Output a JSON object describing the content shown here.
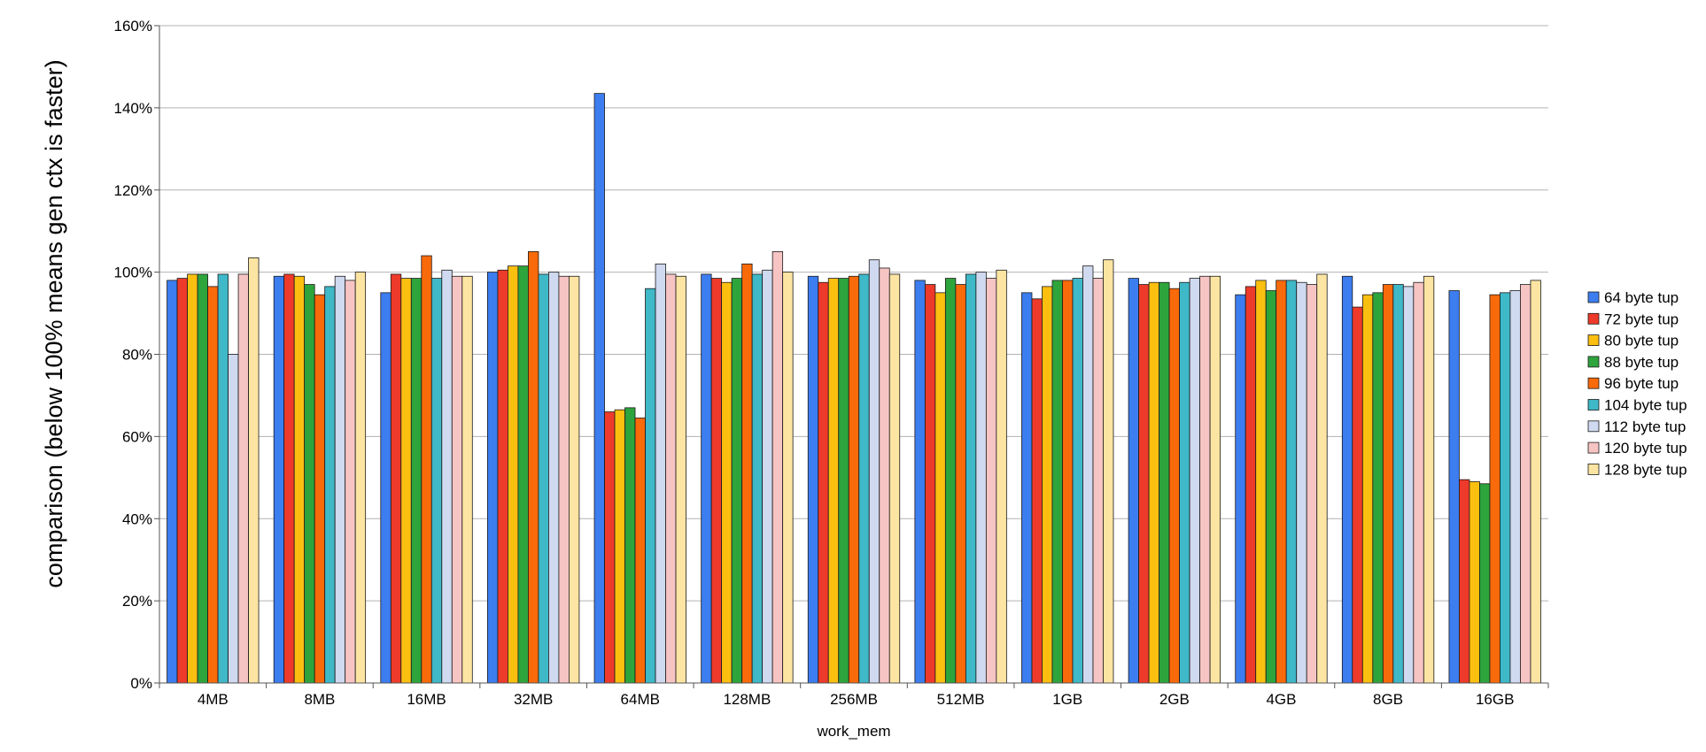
{
  "chart_data": {
    "type": "bar",
    "xlabel": "work_mem",
    "ylabel": "comparison (below 100% means gen ctx is faster)",
    "ylim": [
      0,
      160
    ],
    "y_unit": "%",
    "y_ticks": [
      "0%",
      "20%",
      "40%",
      "60%",
      "80%",
      "100%",
      "120%",
      "140%",
      "160%"
    ],
    "y_tick_values": [
      0,
      20,
      40,
      60,
      80,
      100,
      120,
      140,
      160
    ],
    "grid": true,
    "legend_position": "right",
    "categories": [
      "4MB",
      "8MB",
      "16MB",
      "32MB",
      "64MB",
      "128MB",
      "256MB",
      "512MB",
      "1GB",
      "2GB",
      "4GB",
      "8GB",
      "16GB"
    ],
    "series": [
      {
        "name": "64 byte tup",
        "color": "#3c7df0",
        "values": [
          98,
          99,
          95,
          100,
          143.5,
          99.5,
          99,
          98,
          95,
          98.5,
          94.5,
          99,
          95.5
        ]
      },
      {
        "name": "72 byte tup",
        "color": "#ee3a2a",
        "values": [
          98.5,
          99.5,
          99.5,
          100.5,
          66,
          98.5,
          97.5,
          97,
          93.5,
          97,
          96.5,
          91.5,
          49.5
        ]
      },
      {
        "name": "80 byte tup",
        "color": "#fbbf10",
        "values": [
          99.5,
          99,
          98.5,
          101.5,
          66.5,
          97.5,
          98.5,
          95,
          96.5,
          97.5,
          98,
          94.5,
          49
        ]
      },
      {
        "name": "88 byte tup",
        "color": "#2ea43c",
        "values": [
          99.5,
          97,
          98.5,
          101.5,
          67,
          98.5,
          98.5,
          98.5,
          98,
          97.5,
          95.5,
          95,
          48.5
        ]
      },
      {
        "name": "96 byte tup",
        "color": "#f96a0a",
        "values": [
          96.5,
          94.5,
          104,
          105,
          64.5,
          102,
          99,
          97,
          98,
          96,
          98,
          97,
          94.5
        ]
      },
      {
        "name": "104 byte tup",
        "color": "#3fb8c8",
        "values": [
          99.5,
          96.5,
          98.5,
          99.5,
          96,
          99.5,
          99.5,
          99.5,
          98.5,
          97.5,
          98,
          97,
          95
        ]
      },
      {
        "name": "112 byte tup",
        "color": "#cfd9ef",
        "values": [
          80,
          99,
          100.5,
          100,
          102,
          100.5,
          103,
          100,
          101.5,
          98.5,
          97.5,
          96.5,
          95.5
        ]
      },
      {
        "name": "120 byte tup",
        "color": "#f7c4c4",
        "values": [
          99.5,
          98,
          99,
          99,
          99.5,
          105,
          101,
          98.5,
          98.5,
          99,
          97,
          97.5,
          97
        ]
      },
      {
        "name": "128 byte tup",
        "color": "#fce4a2",
        "values": [
          103.5,
          100,
          99,
          99,
          99,
          100,
          99.5,
          100.5,
          103,
          99,
          99.5,
          99,
          98
        ]
      }
    ]
  }
}
